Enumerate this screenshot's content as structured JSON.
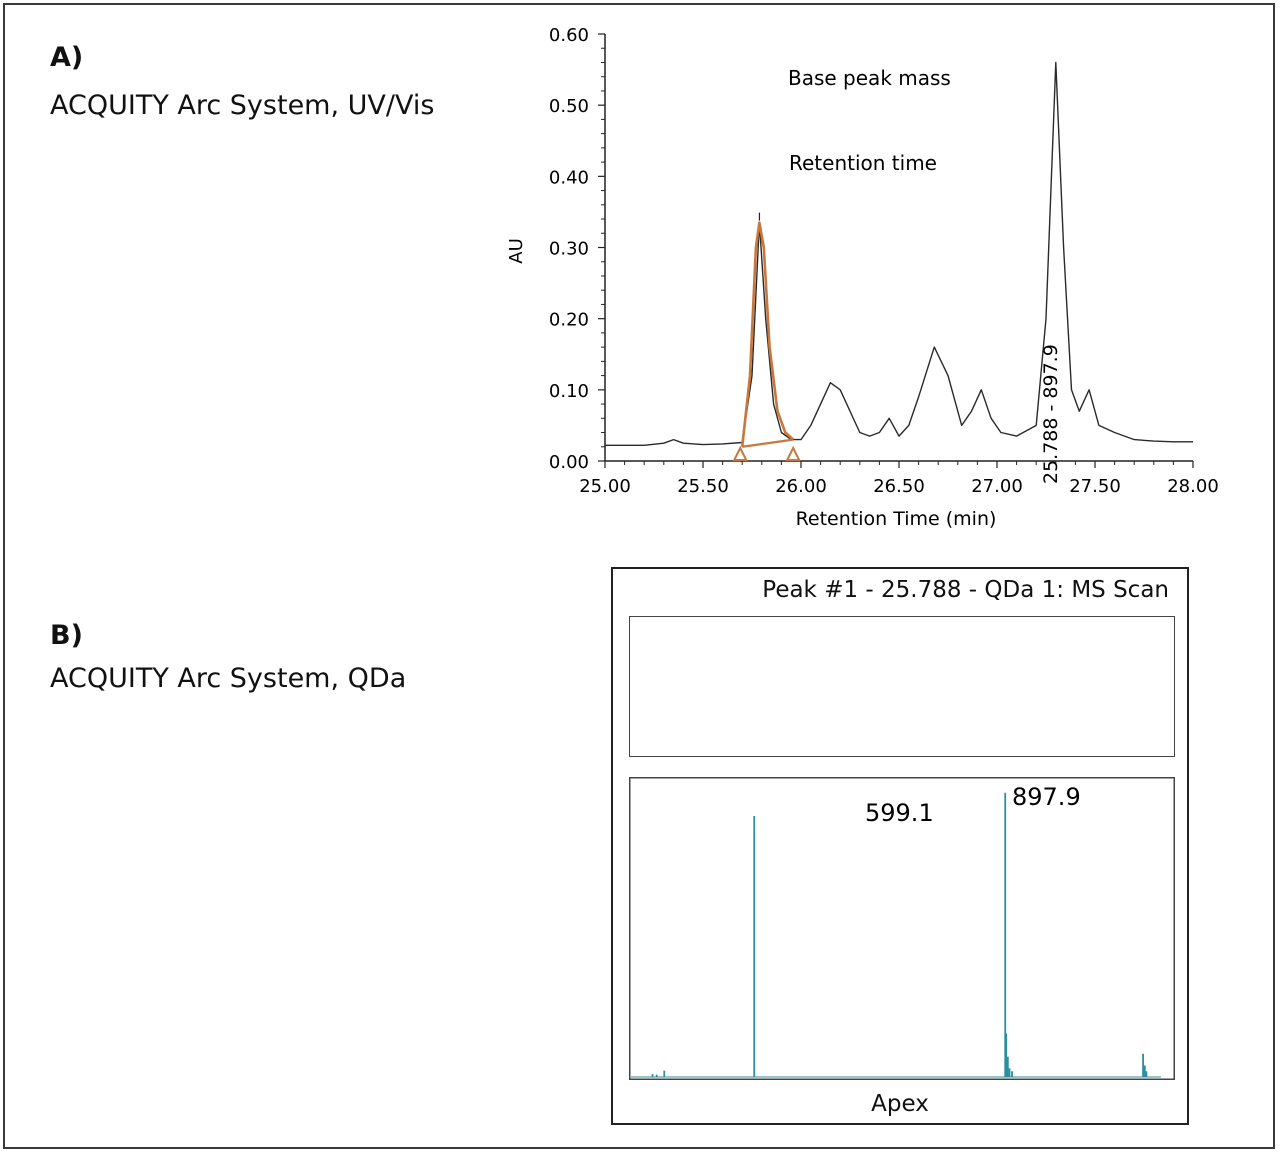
{
  "panel_a": {
    "label": "A)",
    "title": "ACQUITY Arc System, UV/Vis",
    "annotation_peak": "25.788 - 897.9",
    "annotation_mass": "Base peak mass",
    "annotation_rt": "Retention time"
  },
  "panel_b": {
    "label": "B)",
    "title": "ACQUITY Arc System, QDa",
    "window_title": "Peak #1 - 25.788 - QDa 1: MS Scan",
    "footer": "Apex",
    "peak_label_1": "599.1",
    "peak_label_2": "897.9"
  },
  "colors": {
    "trace": "#2a2a2a",
    "highlight": "#c8783c",
    "spectrum": "#2a8f9e",
    "frame": "#3a3a3a"
  },
  "chart_data": [
    {
      "type": "line",
      "title": "",
      "xlabel": "Retention Time (min)",
      "ylabel": "AU",
      "xlim": [
        25.0,
        28.0
      ],
      "ylim": [
        0.0,
        0.6
      ],
      "x_ticks": [
        "25.00",
        "25.50",
        "26.00",
        "26.50",
        "27.00",
        "27.50",
        "28.00"
      ],
      "y_ticks": [
        "0.00",
        "0.10",
        "0.20",
        "0.30",
        "0.40",
        "0.50",
        "0.60"
      ],
      "grid": false,
      "series": [
        {
          "x": [
            25.0,
            25.1,
            25.2,
            25.3,
            25.35,
            25.4,
            25.5,
            25.6,
            25.7,
            25.75,
            25.788,
            25.82,
            25.86,
            25.9,
            25.95,
            26.0,
            26.05,
            26.1,
            26.15,
            26.2,
            26.3,
            26.35,
            26.4,
            26.45,
            26.5,
            26.55,
            26.6,
            26.68,
            26.75,
            26.82,
            26.87,
            26.92,
            26.97,
            27.02,
            27.1,
            27.2,
            27.25,
            27.3,
            27.34,
            27.38,
            27.42,
            27.47,
            27.52,
            27.6,
            27.7,
            27.8,
            27.9,
            28.0
          ],
          "y": [
            0.022,
            0.022,
            0.022,
            0.025,
            0.03,
            0.025,
            0.023,
            0.024,
            0.026,
            0.12,
            0.335,
            0.2,
            0.08,
            0.04,
            0.03,
            0.03,
            0.05,
            0.08,
            0.11,
            0.1,
            0.04,
            0.035,
            0.04,
            0.06,
            0.035,
            0.05,
            0.09,
            0.16,
            0.12,
            0.05,
            0.07,
            0.1,
            0.06,
            0.04,
            0.035,
            0.05,
            0.2,
            0.56,
            0.3,
            0.1,
            0.07,
            0.1,
            0.05,
            0.04,
            0.03,
            0.028,
            0.027,
            0.027
          ]
        }
      ],
      "highlighted_peak": {
        "x": [
          25.7,
          25.74,
          25.77,
          25.788,
          25.81,
          25.84,
          25.88,
          25.92,
          25.96
        ],
        "y": [
          0.02,
          0.12,
          0.3,
          0.335,
          0.3,
          0.16,
          0.07,
          0.04,
          0.03
        ],
        "start": 25.69,
        "end": 25.96,
        "apex": 25.788
      }
    },
    {
      "type": "bar",
      "title": "Peak #1 - 25.788 - QDa 1: MS Scan",
      "xlabel": "",
      "ylabel": "",
      "ylim": [
        0,
        100
      ],
      "x_range": [
        450,
        1100
      ],
      "peaks": [
        {
          "mz": 478,
          "intensity": 1.0
        },
        {
          "mz": 483,
          "intensity": 0.8
        },
        {
          "mz": 492,
          "intensity": 2.2
        },
        {
          "mz": 599.1,
          "intensity": 90.0
        },
        {
          "mz": 897.9,
          "intensity": 98.0
        },
        {
          "mz": 899,
          "intensity": 15.0
        },
        {
          "mz": 901,
          "intensity": 7.0
        },
        {
          "mz": 903,
          "intensity": 3.0
        },
        {
          "mz": 906,
          "intensity": 2.0
        },
        {
          "mz": 1062,
          "intensity": 8.0
        },
        {
          "mz": 1064,
          "intensity": 4.0
        },
        {
          "mz": 1066,
          "intensity": 2.0
        }
      ]
    }
  ]
}
